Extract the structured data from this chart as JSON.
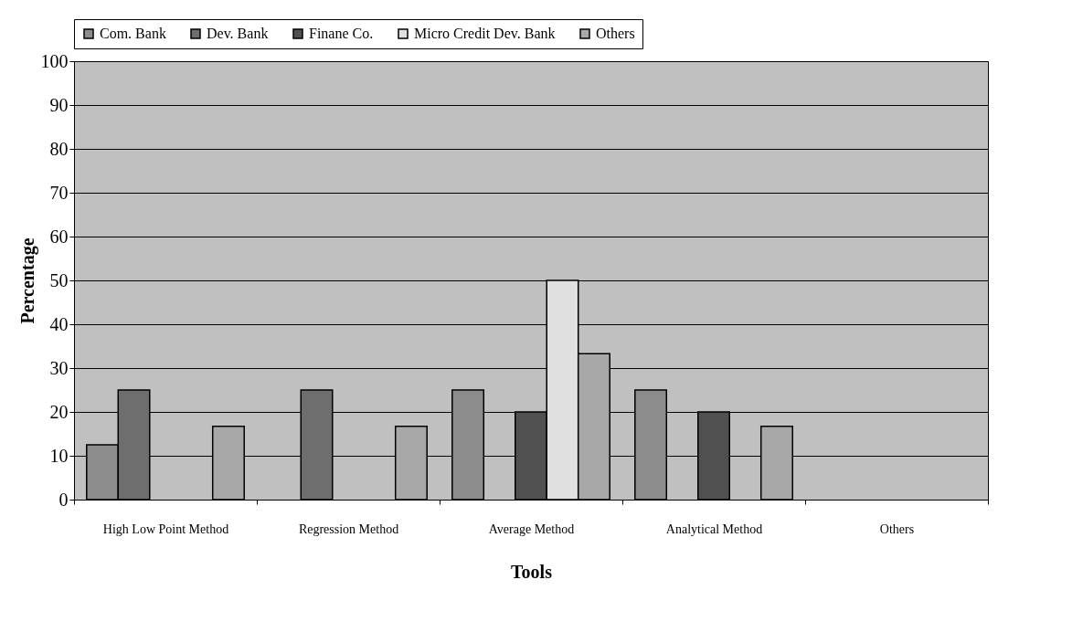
{
  "chart_data": {
    "type": "bar",
    "xlabel": "Tools",
    "ylabel": "Percentage",
    "categories": [
      "High Low Point Method",
      "Regression Method",
      "Average Method",
      "Analytical Method",
      "Others"
    ],
    "series": [
      {
        "name": "Com. Bank",
        "color": "#8c8c8c",
        "values": [
          12.5,
          0,
          25,
          25,
          0
        ]
      },
      {
        "name": "Dev. Bank",
        "color": "#6e6e6e",
        "values": [
          25,
          25,
          0,
          0,
          0
        ]
      },
      {
        "name": "Finane Co.",
        "color": "#505050",
        "values": [
          0,
          0,
          20,
          20,
          0
        ]
      },
      {
        "name": "Micro Credit Dev. Bank",
        "color": "#e0e0e0",
        "values": [
          0,
          0,
          50,
          0,
          0
        ]
      },
      {
        "name": "Others",
        "color": "#a8a8a8",
        "values": [
          16.7,
          16.7,
          33.3,
          16.7,
          0
        ]
      }
    ],
    "ylim": [
      0,
      100
    ],
    "yticks": [
      0,
      10,
      20,
      30,
      40,
      50,
      60,
      70,
      80,
      90,
      100
    ],
    "grid": "y",
    "legend": "top"
  }
}
